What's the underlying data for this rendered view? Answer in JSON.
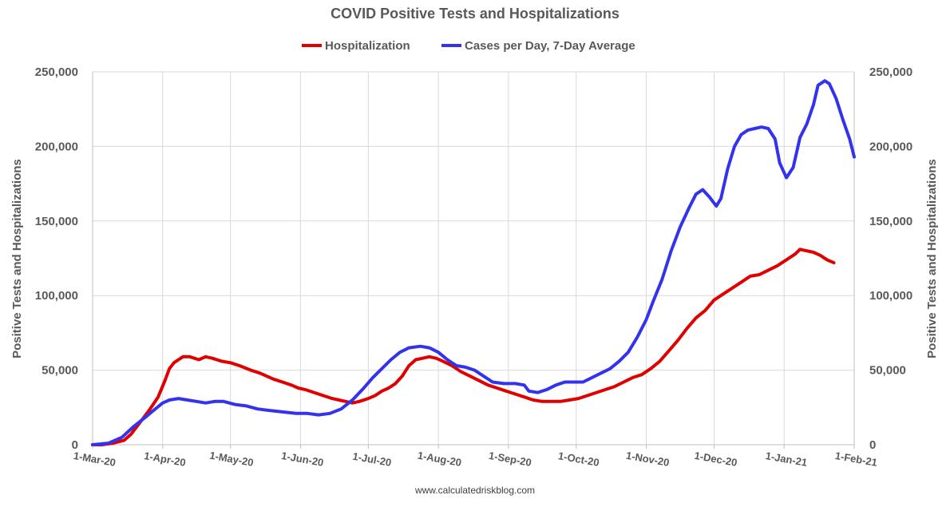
{
  "chart_data": {
    "type": "line",
    "title": "COVID Positive Tests and Hospitalizations",
    "source": "www.calculatedriskblog.com",
    "ylabel_left": "Positive Tests and Hospitalizations",
    "ylabel_right": "Positive Tests and Hospitalizations",
    "ylim": [
      0,
      250000
    ],
    "y_ticks": [
      0,
      50000,
      100000,
      150000,
      200000,
      250000
    ],
    "y_tick_labels": [
      "0",
      "50,000",
      "100,000",
      "150,000",
      "200,000",
      "250,000"
    ],
    "x_ticks": [
      "2020-03-01",
      "2020-04-01",
      "2020-05-01",
      "2020-06-01",
      "2020-07-01",
      "2020-08-01",
      "2020-09-01",
      "2020-10-01",
      "2020-11-01",
      "2020-12-01",
      "2021-01-01",
      "2021-02-01"
    ],
    "x_tick_labels": [
      "1-Mar-20",
      "1-Apr-20",
      "1-May-20",
      "1-Jun-20",
      "1-Jul-20",
      "1-Aug-20",
      "1-Sep-20",
      "1-Oct-20",
      "1-Nov-20",
      "1-Dec-20",
      "1-Jan-21",
      "1-Feb-21"
    ],
    "xlim": [
      "2020-03-01",
      "2021-02-01"
    ],
    "grid": true,
    "legend_position": "top-center",
    "series": [
      {
        "name": "Hospitalization",
        "color": "#e00000",
        "points": [
          [
            "2020-03-01",
            0
          ],
          [
            "2020-03-05",
            0
          ],
          [
            "2020-03-10",
            1000
          ],
          [
            "2020-03-15",
            3000
          ],
          [
            "2020-03-18",
            7000
          ],
          [
            "2020-03-22",
            15000
          ],
          [
            "2020-03-26",
            23000
          ],
          [
            "2020-03-30",
            32000
          ],
          [
            "2020-04-02",
            43000
          ],
          [
            "2020-04-04",
            51000
          ],
          [
            "2020-04-06",
            55000
          ],
          [
            "2020-04-08",
            57000
          ],
          [
            "2020-04-10",
            59000
          ],
          [
            "2020-04-13",
            59000
          ],
          [
            "2020-04-17",
            57000
          ],
          [
            "2020-04-20",
            59000
          ],
          [
            "2020-04-23",
            58000
          ],
          [
            "2020-04-27",
            56000
          ],
          [
            "2020-05-01",
            55000
          ],
          [
            "2020-05-05",
            53000
          ],
          [
            "2020-05-10",
            50000
          ],
          [
            "2020-05-14",
            48000
          ],
          [
            "2020-05-17",
            46000
          ],
          [
            "2020-05-20",
            44000
          ],
          [
            "2020-05-24",
            42000
          ],
          [
            "2020-05-28",
            40000
          ],
          [
            "2020-05-31",
            38000
          ],
          [
            "2020-06-03",
            37000
          ],
          [
            "2020-06-07",
            35000
          ],
          [
            "2020-06-11",
            33000
          ],
          [
            "2020-06-15",
            31000
          ],
          [
            "2020-06-18",
            30000
          ],
          [
            "2020-06-21",
            29000
          ],
          [
            "2020-06-24",
            28000
          ],
          [
            "2020-06-27",
            29000
          ],
          [
            "2020-07-01",
            31000
          ],
          [
            "2020-07-04",
            33000
          ],
          [
            "2020-07-07",
            36000
          ],
          [
            "2020-07-10",
            38000
          ],
          [
            "2020-07-13",
            41000
          ],
          [
            "2020-07-16",
            46000
          ],
          [
            "2020-07-19",
            53000
          ],
          [
            "2020-07-22",
            57000
          ],
          [
            "2020-07-25",
            58000
          ],
          [
            "2020-07-28",
            59000
          ],
          [
            "2020-07-31",
            58000
          ],
          [
            "2020-08-03",
            56000
          ],
          [
            "2020-08-07",
            53000
          ],
          [
            "2020-08-11",
            49000
          ],
          [
            "2020-08-15",
            46000
          ],
          [
            "2020-08-19",
            43000
          ],
          [
            "2020-08-23",
            40000
          ],
          [
            "2020-08-27",
            38000
          ],
          [
            "2020-08-31",
            36000
          ],
          [
            "2020-09-04",
            34000
          ],
          [
            "2020-09-08",
            32000
          ],
          [
            "2020-09-12",
            30000
          ],
          [
            "2020-09-16",
            29000
          ],
          [
            "2020-09-20",
            29000
          ],
          [
            "2020-09-24",
            29000
          ],
          [
            "2020-09-28",
            30000
          ],
          [
            "2020-10-02",
            31000
          ],
          [
            "2020-10-06",
            33000
          ],
          [
            "2020-10-10",
            35000
          ],
          [
            "2020-10-14",
            37000
          ],
          [
            "2020-10-18",
            39000
          ],
          [
            "2020-10-22",
            42000
          ],
          [
            "2020-10-26",
            45000
          ],
          [
            "2020-10-30",
            47000
          ],
          [
            "2020-11-03",
            51000
          ],
          [
            "2020-11-07",
            56000
          ],
          [
            "2020-11-11",
            63000
          ],
          [
            "2020-11-15",
            70000
          ],
          [
            "2020-11-19",
            78000
          ],
          [
            "2020-11-23",
            85000
          ],
          [
            "2020-11-27",
            90000
          ],
          [
            "2020-12-01",
            97000
          ],
          [
            "2020-12-05",
            101000
          ],
          [
            "2020-12-09",
            105000
          ],
          [
            "2020-12-13",
            109000
          ],
          [
            "2020-12-17",
            113000
          ],
          [
            "2020-12-21",
            114000
          ],
          [
            "2020-12-25",
            117000
          ],
          [
            "2020-12-29",
            120000
          ],
          [
            "2021-01-02",
            124000
          ],
          [
            "2021-01-06",
            128000
          ],
          [
            "2021-01-08",
            131000
          ],
          [
            "2021-01-11",
            130000
          ],
          [
            "2021-01-14",
            129000
          ],
          [
            "2021-01-17",
            127000
          ],
          [
            "2021-01-20",
            124000
          ],
          [
            "2021-01-23",
            122000
          ]
        ]
      },
      {
        "name": "Cases per Day, 7-Day Average",
        "color": "#3333ee",
        "points": [
          [
            "2020-03-01",
            0
          ],
          [
            "2020-03-08",
            1000
          ],
          [
            "2020-03-14",
            5000
          ],
          [
            "2020-03-19",
            12000
          ],
          [
            "2020-03-24",
            18000
          ],
          [
            "2020-03-28",
            23000
          ],
          [
            "2020-04-01",
            28000
          ],
          [
            "2020-04-04",
            30000
          ],
          [
            "2020-04-08",
            31000
          ],
          [
            "2020-04-12",
            30000
          ],
          [
            "2020-04-16",
            29000
          ],
          [
            "2020-04-20",
            28000
          ],
          [
            "2020-04-24",
            29000
          ],
          [
            "2020-04-28",
            29000
          ],
          [
            "2020-05-03",
            27000
          ],
          [
            "2020-05-08",
            26000
          ],
          [
            "2020-05-13",
            24000
          ],
          [
            "2020-05-18",
            23000
          ],
          [
            "2020-05-24",
            22000
          ],
          [
            "2020-05-30",
            21000
          ],
          [
            "2020-06-04",
            21000
          ],
          [
            "2020-06-09",
            20000
          ],
          [
            "2020-06-14",
            21000
          ],
          [
            "2020-06-19",
            24000
          ],
          [
            "2020-06-24",
            30000
          ],
          [
            "2020-06-29",
            38000
          ],
          [
            "2020-07-03",
            45000
          ],
          [
            "2020-07-07",
            51000
          ],
          [
            "2020-07-11",
            57000
          ],
          [
            "2020-07-15",
            62000
          ],
          [
            "2020-07-19",
            65000
          ],
          [
            "2020-07-24",
            66000
          ],
          [
            "2020-07-28",
            65000
          ],
          [
            "2020-08-01",
            62000
          ],
          [
            "2020-08-05",
            57000
          ],
          [
            "2020-08-09",
            53000
          ],
          [
            "2020-08-13",
            52000
          ],
          [
            "2020-08-17",
            50000
          ],
          [
            "2020-08-21",
            46000
          ],
          [
            "2020-08-25",
            42000
          ],
          [
            "2020-08-30",
            41000
          ],
          [
            "2020-09-04",
            41000
          ],
          [
            "2020-09-08",
            40000
          ],
          [
            "2020-09-10",
            36000
          ],
          [
            "2020-09-14",
            35000
          ],
          [
            "2020-09-18",
            37000
          ],
          [
            "2020-09-22",
            40000
          ],
          [
            "2020-09-26",
            42000
          ],
          [
            "2020-09-30",
            42000
          ],
          [
            "2020-10-04",
            42000
          ],
          [
            "2020-10-08",
            45000
          ],
          [
            "2020-10-12",
            48000
          ],
          [
            "2020-10-16",
            51000
          ],
          [
            "2020-10-20",
            56000
          ],
          [
            "2020-10-24",
            62000
          ],
          [
            "2020-10-28",
            72000
          ],
          [
            "2020-11-01",
            84000
          ],
          [
            "2020-11-04",
            96000
          ],
          [
            "2020-11-08",
            111000
          ],
          [
            "2020-11-12",
            130000
          ],
          [
            "2020-11-16",
            146000
          ],
          [
            "2020-11-20",
            159000
          ],
          [
            "2020-11-23",
            168000
          ],
          [
            "2020-11-26",
            171000
          ],
          [
            "2020-11-29",
            166000
          ],
          [
            "2020-12-02",
            160000
          ],
          [
            "2020-12-04",
            165000
          ],
          [
            "2020-12-07",
            185000
          ],
          [
            "2020-12-10",
            200000
          ],
          [
            "2020-12-13",
            208000
          ],
          [
            "2020-12-16",
            211000
          ],
          [
            "2020-12-19",
            212000
          ],
          [
            "2020-12-22",
            213000
          ],
          [
            "2020-12-25",
            212000
          ],
          [
            "2020-12-28",
            205000
          ],
          [
            "2020-12-30",
            189000
          ],
          [
            "2021-01-02",
            179000
          ],
          [
            "2021-01-05",
            186000
          ],
          [
            "2021-01-08",
            206000
          ],
          [
            "2021-01-11",
            215000
          ],
          [
            "2021-01-14",
            228000
          ],
          [
            "2021-01-16",
            241000
          ],
          [
            "2021-01-19",
            244000
          ],
          [
            "2021-01-21",
            242000
          ],
          [
            "2021-01-24",
            232000
          ],
          [
            "2021-01-27",
            218000
          ],
          [
            "2021-01-30",
            205000
          ],
          [
            "2021-02-01",
            193000
          ]
        ]
      }
    ]
  }
}
